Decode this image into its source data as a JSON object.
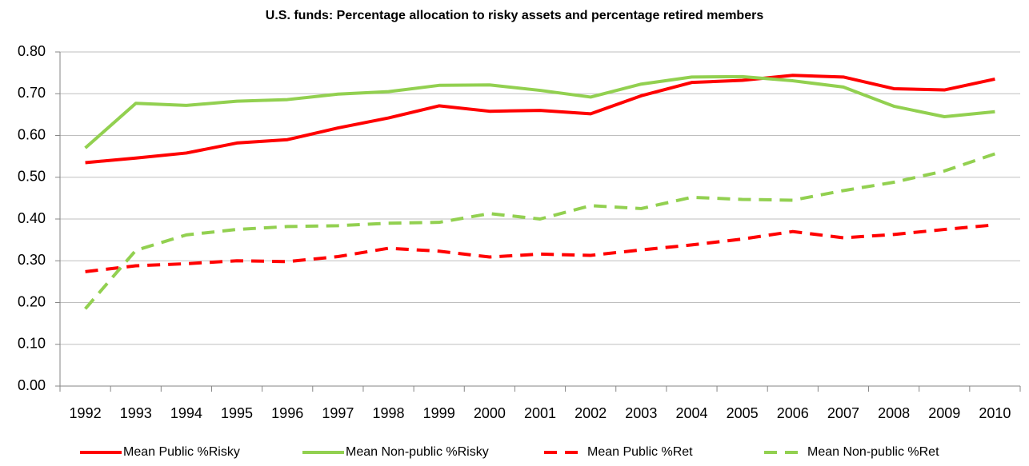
{
  "chart_data": {
    "type": "line",
    "title": "U.S. funds: Percentage allocation to risky assets and percentage retired members",
    "categories": [
      "1992",
      "1993",
      "1994",
      "1995",
      "1996",
      "1997",
      "1998",
      "1999",
      "2000",
      "2001",
      "2002",
      "2003",
      "2004",
      "2005",
      "2006",
      "2007",
      "2008",
      "2009",
      "2010"
    ],
    "series": [
      {
        "name": "Mean Public %Risky",
        "color": "#ff0000",
        "dashed": false,
        "values": [
          0.535,
          0.546,
          0.558,
          0.582,
          0.59,
          0.618,
          0.642,
          0.671,
          0.658,
          0.66,
          0.652,
          0.695,
          0.727,
          0.732,
          0.744,
          0.74,
          0.712,
          0.709,
          0.735
        ]
      },
      {
        "name": "Mean Non-public %Risky",
        "color": "#92d050",
        "dashed": false,
        "values": [
          0.57,
          0.677,
          0.672,
          0.682,
          0.686,
          0.699,
          0.705,
          0.72,
          0.721,
          0.708,
          0.692,
          0.723,
          0.74,
          0.741,
          0.731,
          0.716,
          0.67,
          0.645,
          0.657
        ]
      },
      {
        "name": "Mean Public %Ret",
        "color": "#ff0000",
        "dashed": true,
        "values": [
          0.274,
          0.288,
          0.293,
          0.3,
          0.298,
          0.31,
          0.33,
          0.323,
          0.309,
          0.316,
          0.313,
          0.326,
          0.338,
          0.352,
          0.37,
          0.355,
          0.363,
          0.375,
          0.386
        ]
      },
      {
        "name": "Mean Non-public %Ret",
        "color": "#92d050",
        "dashed": true,
        "values": [
          0.185,
          0.325,
          0.362,
          0.375,
          0.382,
          0.384,
          0.39,
          0.392,
          0.413,
          0.4,
          0.432,
          0.425,
          0.452,
          0.447,
          0.445,
          0.468,
          0.488,
          0.515,
          0.556
        ]
      }
    ],
    "ylim": [
      0,
      0.8
    ],
    "yticks": [
      {
        "value": 0,
        "label": "0.00"
      },
      {
        "value": 0.1,
        "label": "0.10"
      },
      {
        "value": 0.2,
        "label": "0.20"
      },
      {
        "value": 0.3,
        "label": "0.30"
      },
      {
        "value": 0.4,
        "label": "0.40"
      },
      {
        "value": 0.5,
        "label": "0.50"
      },
      {
        "value": 0.6,
        "label": "0.60"
      },
      {
        "value": 0.7,
        "label": "0.70"
      },
      {
        "value": 0.8,
        "label": "0.80"
      }
    ],
    "grid": true,
    "legend": "bottom"
  }
}
